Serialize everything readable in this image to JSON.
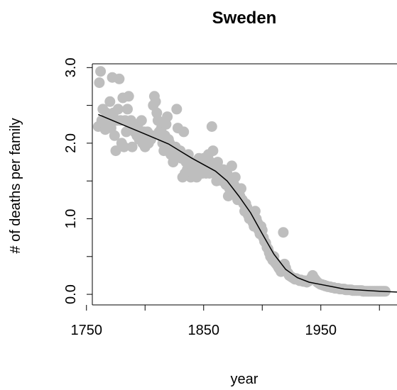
{
  "chart_data": {
    "type": "scatter",
    "title": "Sweden",
    "xlabel": "year",
    "ylabel": "# of deaths per family",
    "xlim": [
      1755,
      2015
    ],
    "ylim": [
      -0.14,
      3.05
    ],
    "x_ticks": [
      1750,
      1800,
      1850,
      1900,
      1950,
      2000
    ],
    "x_tick_labels": [
      "1750",
      "",
      "1850",
      "",
      "1950",
      ""
    ],
    "y_ticks": [
      0.0,
      0.5,
      1.0,
      1.5,
      2.0,
      2.5,
      3.0
    ],
    "y_tick_labels": [
      "0.0",
      "",
      "1.0",
      "",
      "2.0",
      "",
      "3.0"
    ],
    "grid": false,
    "point_color": "#BEBEBE",
    "line_color": "#000000",
    "points": [
      [
        1760,
        2.22
      ],
      [
        1761,
        2.8
      ],
      [
        1762,
        2.95
      ],
      [
        1763,
        2.3
      ],
      [
        1764,
        2.45
      ],
      [
        1765,
        2.28
      ],
      [
        1766,
        2.18
      ],
      [
        1767,
        2.4
      ],
      [
        1768,
        2.3
      ],
      [
        1769,
        2.35
      ],
      [
        1770,
        2.55
      ],
      [
        1771,
        2.2
      ],
      [
        1772,
        2.87
      ],
      [
        1773,
        2.4
      ],
      [
        1774,
        2.1
      ],
      [
        1775,
        1.9
      ],
      [
        1776,
        2.3
      ],
      [
        1777,
        2.45
      ],
      [
        1778,
        2.85
      ],
      [
        1779,
        2.3
      ],
      [
        1780,
        2.0
      ],
      [
        1781,
        2.6
      ],
      [
        1782,
        1.95
      ],
      [
        1783,
        2.3
      ],
      [
        1784,
        2.15
      ],
      [
        1785,
        2.45
      ],
      [
        1786,
        2.62
      ],
      [
        1787,
        2.2
      ],
      [
        1788,
        2.3
      ],
      [
        1789,
        1.95
      ],
      [
        1790,
        2.25
      ],
      [
        1791,
        2.15
      ],
      [
        1792,
        2.2
      ],
      [
        1793,
        2.1
      ],
      [
        1794,
        2.25
      ],
      [
        1795,
        2.05
      ],
      [
        1796,
        2.1
      ],
      [
        1797,
        2.3
      ],
      [
        1798,
        2.0
      ],
      [
        1799,
        2.15
      ],
      [
        1800,
        1.95
      ],
      [
        1801,
        2.05
      ],
      [
        1802,
        2.15
      ],
      [
        1803,
        2.0
      ],
      [
        1804,
        2.1
      ],
      [
        1805,
        2.05
      ],
      [
        1806,
        2.1
      ],
      [
        1807,
        2.5
      ],
      [
        1808,
        2.62
      ],
      [
        1809,
        2.55
      ],
      [
        1810,
        2.4
      ],
      [
        1811,
        2.3
      ],
      [
        1812,
        2.15
      ],
      [
        1813,
        2.1
      ],
      [
        1814,
        2.2
      ],
      [
        1815,
        2.0
      ],
      [
        1816,
        1.9
      ],
      [
        1817,
        2.1
      ],
      [
        1818,
        2.25
      ],
      [
        1819,
        2.35
      ],
      [
        1820,
        2.05
      ],
      [
        1821,
        2.0
      ],
      [
        1822,
        1.85
      ],
      [
        1823,
        1.9
      ],
      [
        1824,
        1.75
      ],
      [
        1825,
        1.8
      ],
      [
        1826,
        1.95
      ],
      [
        1827,
        2.45
      ],
      [
        1828,
        2.2
      ],
      [
        1829,
        1.85
      ],
      [
        1830,
        1.9
      ],
      [
        1831,
        1.8
      ],
      [
        1832,
        1.55
      ],
      [
        1833,
        2.15
      ],
      [
        1834,
        1.6
      ],
      [
        1835,
        1.75
      ],
      [
        1836,
        1.65
      ],
      [
        1837,
        1.85
      ],
      [
        1838,
        1.6
      ],
      [
        1839,
        1.55
      ],
      [
        1840,
        1.7
      ],
      [
        1841,
        1.6
      ],
      [
        1842,
        1.75
      ],
      [
        1843,
        1.62
      ],
      [
        1844,
        1.55
      ],
      [
        1845,
        1.7
      ],
      [
        1846,
        1.8
      ],
      [
        1847,
        1.65
      ],
      [
        1848,
        1.75
      ],
      [
        1849,
        1.6
      ],
      [
        1850,
        1.8
      ],
      [
        1851,
        1.7
      ],
      [
        1852,
        1.6
      ],
      [
        1853,
        1.65
      ],
      [
        1854,
        1.85
      ],
      [
        1855,
        1.6
      ],
      [
        1856,
        1.75
      ],
      [
        1857,
        2.22
      ],
      [
        1858,
        1.9
      ],
      [
        1859,
        1.65
      ],
      [
        1860,
        1.7
      ],
      [
        1861,
        1.5
      ],
      [
        1862,
        1.75
      ],
      [
        1863,
        1.55
      ],
      [
        1864,
        1.65
      ],
      [
        1865,
        1.6
      ],
      [
        1866,
        1.5
      ],
      [
        1867,
        1.65
      ],
      [
        1868,
        1.55
      ],
      [
        1869,
        1.45
      ],
      [
        1870,
        1.6
      ],
      [
        1871,
        1.3
      ],
      [
        1872,
        1.4
      ],
      [
        1873,
        1.45
      ],
      [
        1874,
        1.7
      ],
      [
        1875,
        1.5
      ],
      [
        1876,
        1.45
      ],
      [
        1877,
        1.55
      ],
      [
        1878,
        1.3
      ],
      [
        1879,
        1.25
      ],
      [
        1880,
        1.35
      ],
      [
        1881,
        1.3
      ],
      [
        1882,
        1.4
      ],
      [
        1883,
        1.25
      ],
      [
        1884,
        1.2
      ],
      [
        1885,
        1.1
      ],
      [
        1886,
        1.2
      ],
      [
        1887,
        1.15
      ],
      [
        1888,
        1.05
      ],
      [
        1889,
        1.0
      ],
      [
        1890,
        1.05
      ],
      [
        1891,
        1.0
      ],
      [
        1892,
        0.95
      ],
      [
        1893,
        0.9
      ],
      [
        1894,
        1.1
      ],
      [
        1895,
        1.0
      ],
      [
        1896,
        0.95
      ],
      [
        1897,
        0.85
      ],
      [
        1898,
        0.8
      ],
      [
        1899,
        0.9
      ],
      [
        1900,
        0.85
      ],
      [
        1901,
        0.75
      ],
      [
        1902,
        0.7
      ],
      [
        1903,
        0.68
      ],
      [
        1904,
        0.62
      ],
      [
        1905,
        0.6
      ],
      [
        1906,
        0.55
      ],
      [
        1907,
        0.5
      ],
      [
        1908,
        0.48
      ],
      [
        1909,
        0.45
      ],
      [
        1910,
        0.5
      ],
      [
        1911,
        0.42
      ],
      [
        1912,
        0.4
      ],
      [
        1913,
        0.38
      ],
      [
        1914,
        0.35
      ],
      [
        1915,
        0.33
      ],
      [
        1916,
        0.3
      ],
      [
        1917,
        0.34
      ],
      [
        1918,
        0.82
      ],
      [
        1919,
        0.4
      ],
      [
        1920,
        0.35
      ],
      [
        1921,
        0.3
      ],
      [
        1922,
        0.28
      ],
      [
        1923,
        0.25
      ],
      [
        1924,
        0.24
      ],
      [
        1925,
        0.23
      ],
      [
        1926,
        0.22
      ],
      [
        1927,
        0.21
      ],
      [
        1928,
        0.2
      ],
      [
        1929,
        0.21
      ],
      [
        1930,
        0.2
      ],
      [
        1931,
        0.19
      ],
      [
        1932,
        0.18
      ],
      [
        1933,
        0.19
      ],
      [
        1934,
        0.18
      ],
      [
        1935,
        0.17
      ],
      [
        1936,
        0.18
      ],
      [
        1937,
        0.17
      ],
      [
        1938,
        0.16
      ],
      [
        1939,
        0.17
      ],
      [
        1940,
        0.18
      ],
      [
        1941,
        0.2
      ],
      [
        1942,
        0.22
      ],
      [
        1943,
        0.25
      ],
      [
        1944,
        0.22
      ],
      [
        1945,
        0.2
      ],
      [
        1946,
        0.18
      ],
      [
        1947,
        0.16
      ],
      [
        1948,
        0.15
      ],
      [
        1949,
        0.14
      ],
      [
        1950,
        0.13
      ],
      [
        1951,
        0.13
      ],
      [
        1952,
        0.12
      ],
      [
        1953,
        0.12
      ],
      [
        1954,
        0.11
      ],
      [
        1955,
        0.11
      ],
      [
        1956,
        0.1
      ],
      [
        1957,
        0.1
      ],
      [
        1958,
        0.1
      ],
      [
        1959,
        0.09
      ],
      [
        1960,
        0.09
      ],
      [
        1961,
        0.09
      ],
      [
        1962,
        0.08
      ],
      [
        1963,
        0.08
      ],
      [
        1964,
        0.08
      ],
      [
        1965,
        0.08
      ],
      [
        1966,
        0.07
      ],
      [
        1967,
        0.07
      ],
      [
        1968,
        0.07
      ],
      [
        1969,
        0.07
      ],
      [
        1970,
        0.07
      ],
      [
        1971,
        0.06
      ],
      [
        1972,
        0.06
      ],
      [
        1973,
        0.06
      ],
      [
        1974,
        0.06
      ],
      [
        1975,
        0.06
      ],
      [
        1976,
        0.06
      ],
      [
        1977,
        0.05
      ],
      [
        1978,
        0.05
      ],
      [
        1979,
        0.05
      ],
      [
        1980,
        0.05
      ],
      [
        1981,
        0.05
      ],
      [
        1982,
        0.05
      ],
      [
        1983,
        0.05
      ],
      [
        1984,
        0.05
      ],
      [
        1985,
        0.05
      ],
      [
        1986,
        0.04
      ],
      [
        1987,
        0.04
      ],
      [
        1988,
        0.04
      ],
      [
        1989,
        0.04
      ],
      [
        1990,
        0.04
      ],
      [
        1991,
        0.04
      ],
      [
        1992,
        0.04
      ],
      [
        1993,
        0.04
      ],
      [
        1994,
        0.04
      ],
      [
        1995,
        0.04
      ],
      [
        1996,
        0.04
      ],
      [
        1997,
        0.04
      ],
      [
        1998,
        0.04
      ],
      [
        1999,
        0.04
      ],
      [
        2000,
        0.04
      ],
      [
        2001,
        0.04
      ],
      [
        2002,
        0.04
      ],
      [
        2003,
        0.04
      ],
      [
        2004,
        0.04
      ],
      [
        2005,
        0.04
      ]
    ],
    "trend_line": [
      [
        1760,
        2.38
      ],
      [
        1780,
        2.25
      ],
      [
        1800,
        2.12
      ],
      [
        1820,
        1.99
      ],
      [
        1840,
        1.8
      ],
      [
        1860,
        1.63
      ],
      [
        1870,
        1.5
      ],
      [
        1880,
        1.3
      ],
      [
        1890,
        1.08
      ],
      [
        1900,
        0.8
      ],
      [
        1910,
        0.53
      ],
      [
        1920,
        0.33
      ],
      [
        1930,
        0.22
      ],
      [
        1940,
        0.16
      ],
      [
        1950,
        0.13
      ],
      [
        1960,
        0.1
      ],
      [
        1970,
        0.07
      ],
      [
        1980,
        0.06
      ],
      [
        1990,
        0.05
      ],
      [
        2000,
        0.04
      ],
      [
        2015,
        0.03
      ]
    ]
  }
}
